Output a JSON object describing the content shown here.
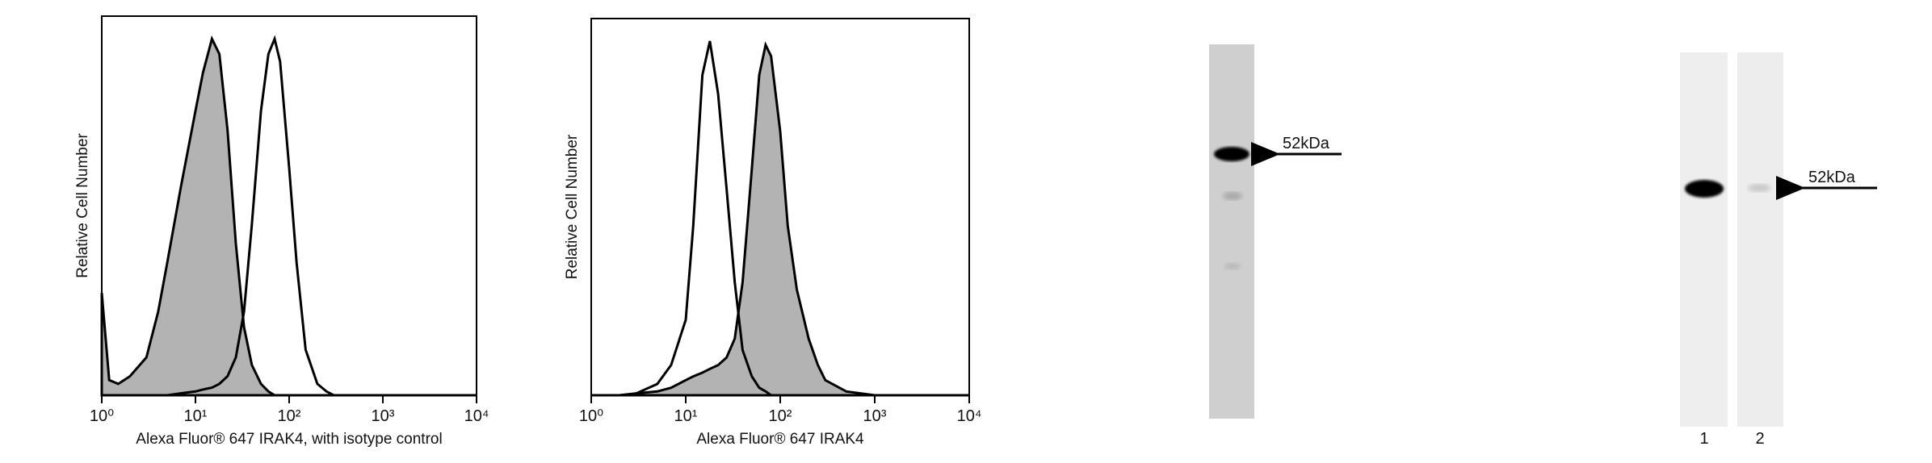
{
  "chart_data": [
    {
      "type": "histogram-overlay",
      "x_label": "Alexa Fluor® 647 IRAK4, with isotype control",
      "y_label": "Relative Cell Number",
      "log_x": true,
      "xlim": [
        1,
        10000
      ],
      "ylim": [
        0,
        100
      ],
      "xticks": [
        {
          "value": 1,
          "label": "10⁰"
        },
        {
          "value": 10,
          "label": "10¹"
        },
        {
          "value": 100,
          "label": "10²"
        },
        {
          "value": 1000,
          "label": "10³"
        },
        {
          "value": 10000,
          "label": "10⁴"
        }
      ],
      "x": [
        1,
        1.2,
        1.5,
        2,
        3,
        4,
        5,
        7,
        10,
        12,
        15,
        18,
        22,
        27,
        33,
        40,
        50,
        60,
        70,
        80,
        100,
        120,
        150,
        200,
        250,
        300,
        500,
        1000,
        10000
      ],
      "series": [
        {
          "color": "#b3b3b3",
          "filled": true,
          "values": [
            27,
            4,
            3,
            5,
            10,
            22,
            35,
            55,
            75,
            85,
            94,
            90,
            70,
            40,
            18,
            8,
            3,
            1,
            0,
            0,
            0,
            0,
            0,
            0,
            0,
            0,
            0,
            0,
            0
          ]
        },
        {
          "color": "#000000",
          "filled": false,
          "values": [
            0,
            0,
            0,
            0,
            0,
            0,
            0,
            0.5,
            1,
            1.5,
            2,
            3,
            5,
            10,
            22,
            45,
            75,
            90,
            94,
            88,
            60,
            35,
            12,
            3,
            1,
            0,
            0,
            0,
            0
          ]
        }
      ]
    },
    {
      "type": "histogram-overlay",
      "x_label": "Alexa Fluor® 647 IRAK4",
      "y_label": "Relative Cell Number",
      "log_x": true,
      "xlim": [
        1,
        10000
      ],
      "ylim": [
        0,
        100
      ],
      "xticks": [
        {
          "value": 1,
          "label": "10⁰"
        },
        {
          "value": 10,
          "label": "10¹"
        },
        {
          "value": 100,
          "label": "10²"
        },
        {
          "value": 1000,
          "label": "10³"
        },
        {
          "value": 10000,
          "label": "10⁴"
        }
      ],
      "x": [
        1,
        2,
        3,
        5,
        7,
        10,
        12,
        15,
        18,
        22,
        27,
        33,
        40,
        50,
        60,
        70,
        80,
        100,
        120,
        150,
        200,
        250,
        300,
        500,
        1000,
        10000
      ],
      "series": [
        {
          "color": "#b3b3b3",
          "filled": true,
          "values": [
            0,
            0,
            0.5,
            1,
            2,
            4,
            5,
            6,
            7,
            8,
            10,
            15,
            30,
            60,
            85,
            93,
            90,
            70,
            45,
            28,
            15,
            8,
            4,
            1,
            0,
            0
          ]
        },
        {
          "color": "#000000",
          "filled": false,
          "values": [
            0,
            0,
            0.5,
            3,
            8,
            20,
            45,
            85,
            94,
            80,
            55,
            30,
            12,
            5,
            2,
            1,
            0,
            0,
            0,
            0,
            0,
            0,
            0,
            0,
            0,
            0
          ]
        }
      ]
    }
  ],
  "blots": [
    {
      "marker": "52kDa"
    },
    {
      "marker": "52kDa",
      "lanes": [
        "1",
        "2"
      ]
    }
  ]
}
